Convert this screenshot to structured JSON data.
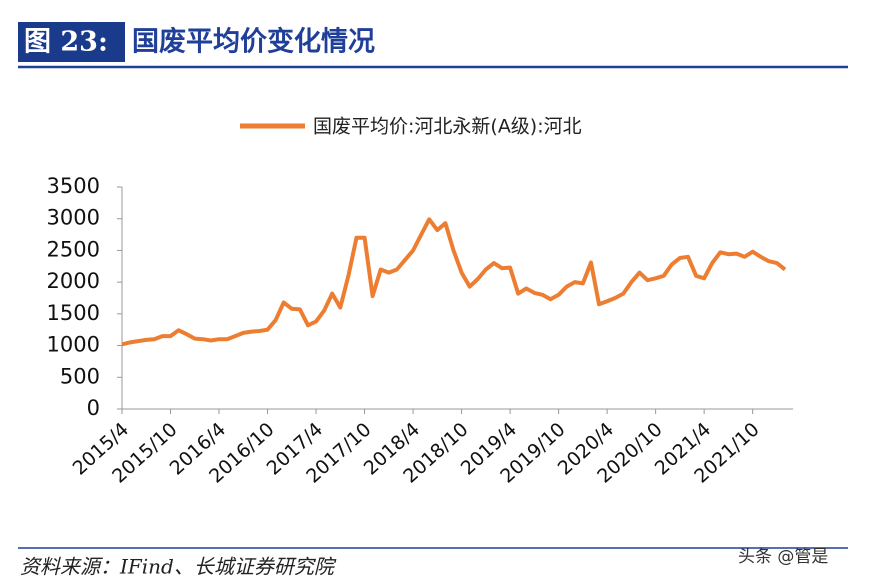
{
  "header": {
    "figure_label": "图 23:",
    "title": "国废平均价变化情况"
  },
  "chart_data": {
    "type": "line",
    "categories": [
      "2015/4",
      null,
      null,
      null,
      null,
      null,
      "2015/10",
      null,
      null,
      null,
      null,
      null,
      "2016/4",
      null,
      null,
      null,
      null,
      null,
      "2016/10",
      null,
      null,
      null,
      null,
      null,
      "2017/4",
      null,
      null,
      null,
      null,
      null,
      "2017/10",
      null,
      null,
      null,
      null,
      null,
      "2018/4",
      null,
      null,
      null,
      null,
      null,
      "2018/10",
      null,
      null,
      null,
      null,
      null,
      "2019/4",
      null,
      null,
      null,
      null,
      null,
      "2019/10",
      null,
      null,
      null,
      null,
      null,
      "2020/4",
      null,
      null,
      null,
      null,
      null,
      "2020/10",
      null,
      null,
      null,
      null,
      null,
      "2021/4",
      null,
      null,
      null,
      null,
      null,
      "2021/10",
      null,
      null,
      null,
      null
    ],
    "series": [
      {
        "name": "国废平均价:河北永新(A级):河北",
        "color": "#ed7d31",
        "values": [
          1020,
          1050,
          1070,
          1090,
          1100,
          1150,
          1150,
          1240,
          1180,
          1110,
          1100,
          1080,
          1100,
          1100,
          1150,
          1200,
          1220,
          1230,
          1250,
          1400,
          1680,
          1580,
          1570,
          1320,
          1380,
          1550,
          1820,
          1600,
          2100,
          2700,
          2700,
          1780,
          2200,
          2150,
          2200,
          2350,
          2500,
          2750,
          2990,
          2820,
          2930,
          2500,
          2150,
          1930,
          2050,
          2200,
          2300,
          2220,
          2230,
          1820,
          1900,
          1830,
          1800,
          1730,
          1800,
          1930,
          2000,
          1980,
          2310,
          1650,
          1700,
          1750,
          1820,
          2000,
          2150,
          2030,
          2060,
          2100,
          2280,
          2380,
          2400,
          2100,
          2060,
          2300,
          2470,
          2440,
          2450,
          2400,
          2480,
          2400,
          2330,
          2300,
          2200
        ]
      }
    ],
    "ylim": [
      0,
      3500
    ],
    "yticks": [
      0,
      500,
      1000,
      1500,
      2000,
      2500,
      3000,
      3500
    ],
    "grid": false
  },
  "footer": {
    "source": "资料来源：IFind、长城证券研究院",
    "watermark": "头条 @管是"
  }
}
